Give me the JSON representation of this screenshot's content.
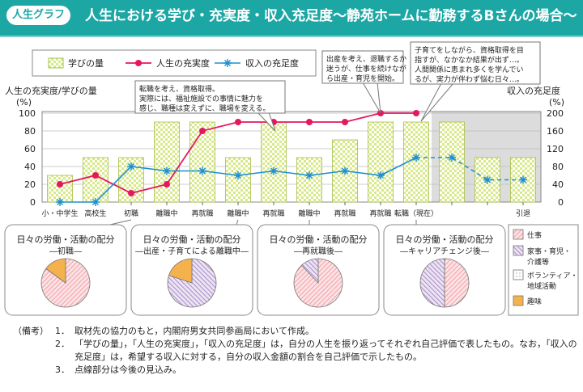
{
  "title_tag": "人生グラフ",
  "title": "人生における学び・充実度・収入充足度～静苑ホームに勤務するBさんの場合～",
  "colors": {
    "teal": "#1ca7a5",
    "bar_fill": "#d8e98a",
    "line_fulfillment": "#e5185e",
    "line_income": "#1e8fd0",
    "future_bg": "#dcdcdc",
    "pie_work": "#f2a0a6",
    "pie_house": "#c8b3dc",
    "pie_volunteer": "#ffffff",
    "pie_hobby": "#f5b14c"
  },
  "chart_data": {
    "type": "bar+line",
    "legend": [
      "学びの量",
      "人生の充実度",
      "収入の充足度"
    ],
    "left_axis_title": "人生の充実度/学びの量",
    "left_axis_unit": "(%)",
    "right_axis_title": "収入の充足度",
    "right_axis_unit": "(%)",
    "left_ticks": [
      "0",
      "20",
      "40",
      "60",
      "80",
      "100"
    ],
    "right_ticks": [
      "0",
      "40",
      "80",
      "120",
      "160",
      "200"
    ],
    "left_range": [
      0,
      100
    ],
    "right_range": [
      0,
      200
    ],
    "categories": [
      "小・中学生",
      "高校生",
      "初職",
      "離職中",
      "再就職",
      "離職中",
      "再就職",
      "離職中",
      "再就職",
      "再就職",
      "転職（現在）",
      "",
      "",
      "引退"
    ],
    "learning": [
      30,
      50,
      50,
      90,
      90,
      50,
      90,
      50,
      70,
      90,
      90,
      90,
      50,
      50
    ],
    "fulfillment": [
      20,
      30,
      10,
      20,
      80,
      90,
      90,
      90,
      90,
      100,
      100,
      null,
      null,
      null
    ],
    "income": [
      0,
      0,
      80,
      70,
      70,
      60,
      70,
      60,
      70,
      60,
      100,
      100,
      50,
      50
    ],
    "future_start_index": 11,
    "callouts": [
      "転職を考え、資格取得。",
      "実際には、福祉施設での事情に魅力を",
      "感じ、職種は変えずに、職場を変える。",
      "出産を考え、退職するか",
      "迷うが、仕事を続けなが",
      "ら出産・育児を開始。",
      "子育てをしながら、資格取得を目",
      "指すが、なかなか結果が出ず…。",
      "人間関係に恵まれ多くを学んでい",
      "るが、実力が伴わず悩む日々…。"
    ],
    "pies": [
      {
        "title": "日々の労働・活動の配分",
        "subtitle": "―初職―",
        "work": 85,
        "house": 0,
        "volunteer": 0,
        "hobby": 15
      },
      {
        "title": "日々の労働・活動の配分",
        "subtitle": "―出産・子育てによる離職中―",
        "work": 0,
        "house": 80,
        "volunteer": 0,
        "hobby": 20
      },
      {
        "title": "日々の労働・活動の配分",
        "subtitle": "―再就職後―",
        "work": 88,
        "house": 12,
        "volunteer": 0,
        "hobby": 0
      },
      {
        "title": "日々の労働・活動の配分",
        "subtitle": "―キャリアチェンジ後―",
        "work": 50,
        "house": 50,
        "volunteer": 0,
        "hobby": 0
      }
    ],
    "pie_legend": [
      {
        "label": "仕事",
        "key": "work"
      },
      {
        "label": "家事・育児・介護等",
        "key": "house"
      },
      {
        "label": "ボランティア・地域活動",
        "key": "volunteer"
      },
      {
        "label": "趣味",
        "key": "hobby"
      }
    ]
  },
  "notes": {
    "label": "（備考）",
    "items": [
      {
        "num": "1．",
        "text": "取材先の協力のもと，内閣府男女共同参画局において作成。"
      },
      {
        "num": "2．",
        "text": "「学びの量」，「人生の充実度」，「収入の充足度」は，自分の人生を振り返ってそれぞれ自己評価で表したもの。なお，「収入の充足度」は，希望する収入に対する，自分の収入金額の割合を自己評価で示したもの。"
      },
      {
        "num": "3．",
        "text": "点線部分は今後の見込み。"
      }
    ]
  }
}
